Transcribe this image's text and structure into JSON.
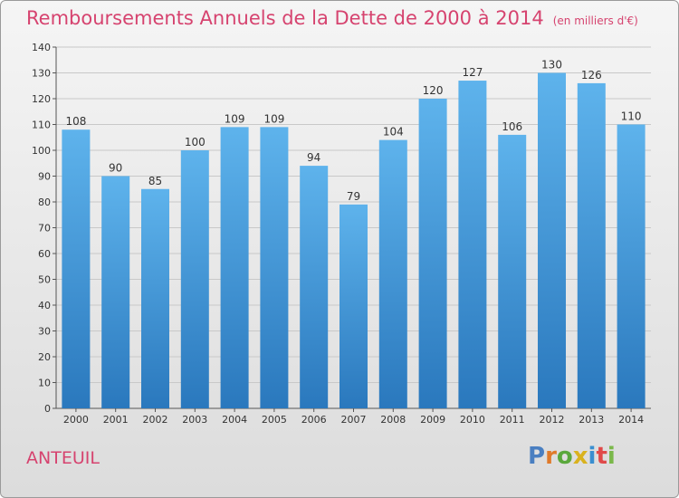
{
  "header": {
    "title": "Remboursements Annuels de la Dette de 2000 à 2014",
    "unit": "(en milliers d'€)"
  },
  "footer": {
    "city": "ANTEUIL",
    "logo_text": "Proxiti"
  },
  "colors": {
    "title": "#d6436f",
    "bar_light": "#5eb3ec",
    "bar_dark": "#2a78bd",
    "logo_letters": [
      "#4a7fc1",
      "#e07a2a",
      "#5aa83c",
      "#d9b21e",
      "#3a8fd0",
      "#e04a4a",
      "#7ab84a"
    ]
  },
  "chart_data": {
    "type": "bar",
    "title": "Remboursements Annuels de la Dette de 2000 à 2014",
    "categories": [
      "2000",
      "2001",
      "2002",
      "2003",
      "2004",
      "2005",
      "2006",
      "2007",
      "2008",
      "2009",
      "2010",
      "2011",
      "2012",
      "2013",
      "2014"
    ],
    "values": [
      108,
      90,
      85,
      100,
      109,
      109,
      94,
      79,
      104,
      120,
      127,
      106,
      130,
      126,
      110
    ],
    "ylim": [
      0,
      140
    ],
    "yticks": [
      0,
      10,
      20,
      30,
      40,
      50,
      60,
      70,
      80,
      90,
      100,
      110,
      120,
      130,
      140
    ],
    "grid": true,
    "data_labels": true
  }
}
